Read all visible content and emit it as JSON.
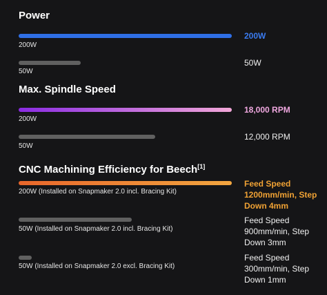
{
  "sections": [
    {
      "title": "Power",
      "rows": [
        {
          "label": "200W",
          "value": "200W",
          "level": 1.0,
          "bar_color": "#2f6fe6",
          "value_color": "#3a7bf0"
        },
        {
          "label": "50W",
          "value": "50W",
          "level": 0.29,
          "bar_color": "#606060",
          "value_color": "#f0f0f0"
        }
      ]
    },
    {
      "title": "Max. Spindle Speed",
      "rows": [
        {
          "label": "200W",
          "value": "18,000 RPM",
          "level": 1.0,
          "bar_color_start": "#8a2be2",
          "bar_color_end": "#f2a7d8",
          "value_color": "#f0a8e0"
        },
        {
          "label": "50W",
          "value": "12,000 RPM",
          "level": 0.64,
          "bar_color": "#606060",
          "value_color": "#f0f0f0"
        }
      ]
    },
    {
      "title": "CNC Machining Efficiency for Beech",
      "title_sup": "[1]",
      "rows": [
        {
          "label": "200W (Installed on Snapmaker 2.0 incl. Bracing Kit)",
          "value_lines": [
            "Feed Speed",
            "1200mm/min, Step",
            "Down 4mm"
          ],
          "level": 1.0,
          "bar_color_start": "#e8662b",
          "bar_color_end": "#f2a640",
          "value_color": "#f0a234"
        },
        {
          "label": "50W (Installed on Snapmaker 2.0 incl. Bracing Kit)",
          "value_lines": [
            "Feed Speed",
            "900mm/min, Step",
            "Down 3mm"
          ],
          "level": 0.53,
          "bar_color": "#606060",
          "value_color": "#f0f0f0"
        },
        {
          "label": "50W (Installed on Snapmaker 2.0 excl. Bracing Kit)",
          "value_lines": [
            "Feed Speed",
            "300mm/min, Step",
            "Down 1mm"
          ],
          "level": 0.06,
          "bar_color": "#606060",
          "value_color": "#f0f0f0"
        }
      ]
    }
  ]
}
